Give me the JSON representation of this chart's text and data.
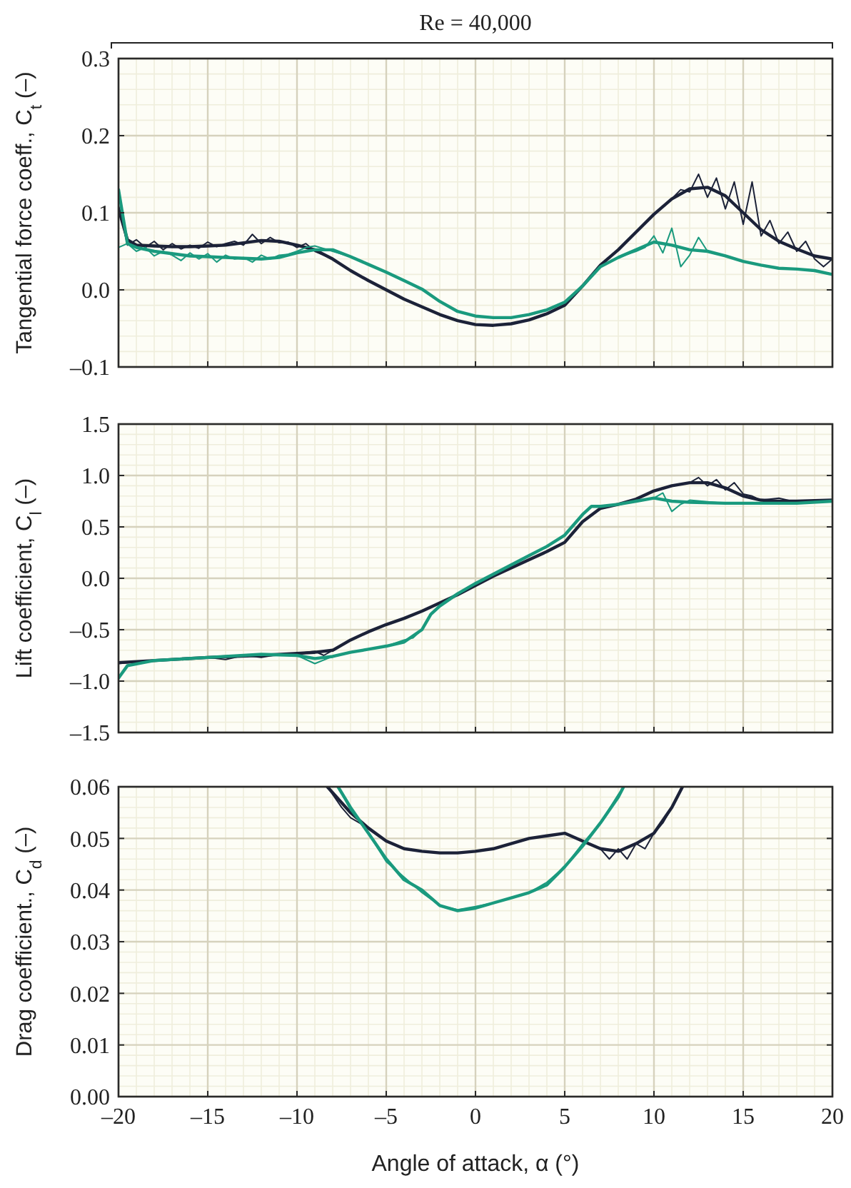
{
  "chart_data": [
    {
      "type": "line",
      "title": "Re = 40,000",
      "ylabel": "Tangential force coeff., C$_{t}$ (–)",
      "xlim": [
        -20,
        20
      ],
      "ylim": [
        -0.1,
        0.3
      ],
      "tick_labels": "y",
      "grid": true,
      "marker": "none",
      "line_style": "solid",
      "xticks": [
        {
          "value": -20,
          "label": null
        },
        {
          "value": -15,
          "label": null
        },
        {
          "value": -10,
          "label": null
        },
        {
          "value": -5,
          "label": null
        },
        {
          "value": 0,
          "label": null
        },
        {
          "value": 5,
          "label": null
        },
        {
          "value": 10,
          "label": null
        },
        {
          "value": 15,
          "label": null
        },
        {
          "value": 20,
          "label": null
        }
      ],
      "yticks": [
        {
          "value": -0.1,
          "label": "–0.1"
        },
        {
          "value": 0,
          "label": "0.0"
        },
        {
          "value": 0.1,
          "label": "0.1"
        },
        {
          "value": 0.2,
          "label": "0.2"
        },
        {
          "value": 0.3,
          "label": "0.3"
        }
      ],
      "series": [
        {
          "color": "#1c2238",
          "x": [
            -20,
            -19.5,
            -19,
            -18.5,
            -18,
            -17.5,
            -17,
            -16.5,
            -16,
            -15.5,
            -15,
            -14.5,
            -14,
            -13.5,
            -13,
            -12.5,
            -12,
            -11.5,
            -11,
            -10.5,
            -10,
            -9.5,
            -9,
            -8,
            -7,
            -6,
            -5,
            -4,
            -3,
            -2,
            -1,
            0,
            1,
            2,
            3,
            4,
            5,
            6,
            7,
            8,
            9,
            10,
            11,
            11.5,
            12,
            12.5,
            13,
            13.5,
            14,
            14.5,
            15,
            15.5,
            16,
            16.5,
            17,
            17.5,
            18,
            18.5,
            19,
            19.5,
            20
          ],
          "values": [
            0.11,
            0.058,
            0.065,
            0.055,
            0.063,
            0.052,
            0.06,
            0.053,
            0.058,
            0.054,
            0.062,
            0.056,
            0.06,
            0.063,
            0.058,
            0.072,
            0.06,
            0.068,
            0.061,
            0.062,
            0.055,
            0.06,
            0.05,
            0.04,
            0.025,
            0.012,
            0.0,
            -0.012,
            -0.022,
            -0.032,
            -0.04,
            -0.045,
            -0.046,
            -0.044,
            -0.039,
            -0.031,
            -0.02,
            0.005,
            0.032,
            0.052,
            0.075,
            0.098,
            0.118,
            0.13,
            0.127,
            0.15,
            0.12,
            0.145,
            0.105,
            0.14,
            0.085,
            0.14,
            0.07,
            0.09,
            0.06,
            0.075,
            0.05,
            0.063,
            0.04,
            0.03,
            0.04
          ]
        },
        {
          "color": "#1c2238",
          "x": [
            -20,
            -19.5,
            -19,
            -18,
            -17,
            -16,
            -15,
            -14,
            -13,
            -12,
            -11,
            -10,
            -9,
            -8,
            -7,
            -6,
            -5,
            -4,
            -3,
            -2,
            -1,
            0,
            1,
            2,
            3,
            4,
            5,
            6,
            7,
            8,
            9,
            10,
            11,
            12,
            13,
            14,
            15,
            16,
            17,
            18,
            19,
            20
          ],
          "values": [
            0.105,
            0.065,
            0.058,
            0.057,
            0.056,
            0.056,
            0.057,
            0.058,
            0.061,
            0.064,
            0.063,
            0.058,
            0.052,
            0.04,
            0.025,
            0.012,
            0.0,
            -0.012,
            -0.022,
            -0.032,
            -0.04,
            -0.045,
            -0.046,
            -0.044,
            -0.039,
            -0.031,
            -0.02,
            0.005,
            0.032,
            0.052,
            0.075,
            0.098,
            0.118,
            0.131,
            0.133,
            0.122,
            0.1,
            0.078,
            0.063,
            0.053,
            0.044,
            0.04
          ]
        },
        {
          "color": "#1a9a7e",
          "x": [
            -20,
            -19.5,
            -19,
            -18.5,
            -18,
            -17.5,
            -17,
            -16.5,
            -16,
            -15.5,
            -15,
            -14.5,
            -14,
            -13.5,
            -13,
            -12.5,
            -12,
            -11.5,
            -11,
            -10.5,
            -10,
            -9.5,
            -9,
            -8,
            -7,
            -6,
            -5,
            -4,
            -3,
            -2,
            -1,
            0,
            1,
            2,
            3,
            4,
            5,
            6,
            7,
            8,
            9,
            9.5,
            10,
            10.5,
            11,
            11.5,
            12,
            12.5,
            13,
            14,
            15,
            16,
            17,
            18,
            19,
            20
          ],
          "values": [
            0.055,
            0.06,
            0.05,
            0.055,
            0.044,
            0.05,
            0.045,
            0.038,
            0.048,
            0.04,
            0.047,
            0.036,
            0.045,
            0.04,
            0.042,
            0.036,
            0.045,
            0.04,
            0.045,
            0.046,
            0.05,
            0.055,
            0.057,
            0.05,
            0.043,
            0.033,
            0.023,
            0.012,
            0.001,
            -0.015,
            -0.028,
            -0.034,
            -0.036,
            -0.036,
            -0.032,
            -0.026,
            -0.016,
            0.005,
            0.03,
            0.042,
            0.05,
            0.055,
            0.07,
            0.048,
            0.08,
            0.03,
            0.045,
            0.068,
            0.05,
            0.044,
            0.037,
            0.032,
            0.028,
            0.027,
            0.025,
            0.02
          ]
        },
        {
          "color": "#1a9a7e",
          "x": [
            -20,
            -19.5,
            -19,
            -18,
            -17,
            -16,
            -15,
            -14,
            -13,
            -12,
            -11,
            -10,
            -9,
            -8,
            -7,
            -6,
            -5,
            -4,
            -3,
            -2,
            -1,
            0,
            1,
            2,
            3,
            4,
            5,
            6,
            7,
            8,
            9,
            10,
            11,
            12,
            13,
            14,
            15,
            16,
            17,
            18,
            19,
            20
          ],
          "values": [
            0.13,
            0.06,
            0.055,
            0.05,
            0.047,
            0.044,
            0.043,
            0.042,
            0.041,
            0.04,
            0.042,
            0.048,
            0.052,
            0.052,
            0.043,
            0.033,
            0.023,
            0.012,
            0.001,
            -0.015,
            -0.028,
            -0.034,
            -0.036,
            -0.036,
            -0.032,
            -0.026,
            -0.016,
            0.005,
            0.03,
            0.042,
            0.052,
            0.062,
            0.058,
            0.052,
            0.05,
            0.044,
            0.037,
            0.032,
            0.028,
            0.027,
            0.025,
            0.02
          ]
        }
      ]
    },
    {
      "type": "line",
      "ylabel": "Lift coefficient, C$_{l}$ (–)",
      "xlim": [
        -20,
        20
      ],
      "ylim": [
        -1.5,
        1.5
      ],
      "tick_labels": "y",
      "grid": true,
      "marker": "none",
      "line_style": "solid",
      "xticks": [
        {
          "value": -20,
          "label": null
        },
        {
          "value": -15,
          "label": null
        },
        {
          "value": -10,
          "label": null
        },
        {
          "value": -5,
          "label": null
        },
        {
          "value": 0,
          "label": null
        },
        {
          "value": 5,
          "label": null
        },
        {
          "value": 10,
          "label": null
        },
        {
          "value": 15,
          "label": null
        },
        {
          "value": 20,
          "label": null
        }
      ],
      "yticks": [
        {
          "value": -1.5,
          "label": "–1.5"
        },
        {
          "value": -1,
          "label": "–1.0"
        },
        {
          "value": -0.5,
          "label": "–0.5"
        },
        {
          "value": 0,
          "label": "0.0"
        },
        {
          "value": 0.5,
          "label": "0.5"
        },
        {
          "value": 1,
          "label": "1.0"
        },
        {
          "value": 1.5,
          "label": "1.5"
        }
      ],
      "series": [
        {
          "color": "#1c2238",
          "x": [
            -20,
            -18,
            -16,
            -15,
            -14,
            -13,
            -12,
            -11,
            -10,
            -9,
            -8.5,
            -8,
            -7,
            -6,
            -5,
            -4,
            -3,
            -2,
            -1,
            0,
            1,
            2,
            3,
            4,
            5,
            6,
            7,
            8,
            9,
            10,
            11,
            12,
            12.5,
            13,
            13.5,
            14,
            14.5,
            15,
            15.5,
            16,
            17,
            18,
            19,
            20
          ],
          "values": [
            -0.83,
            -0.8,
            -0.78,
            -0.77,
            -0.79,
            -0.75,
            -0.77,
            -0.74,
            -0.73,
            -0.71,
            -0.75,
            -0.7,
            -0.6,
            -0.52,
            -0.45,
            -0.39,
            -0.32,
            -0.24,
            -0.16,
            -0.07,
            0.02,
            0.1,
            0.18,
            0.26,
            0.35,
            0.55,
            0.68,
            0.72,
            0.77,
            0.85,
            0.9,
            0.93,
            0.98,
            0.9,
            0.96,
            0.86,
            0.93,
            0.82,
            0.8,
            0.76,
            0.78,
            0.74,
            0.76,
            0.76
          ]
        },
        {
          "color": "#1c2238",
          "x": [
            -20,
            -15,
            -12,
            -10,
            -9,
            -8,
            -7,
            -6,
            -5,
            -4,
            -3,
            -2,
            -1,
            0,
            1,
            2,
            3,
            4,
            5,
            6,
            7,
            8,
            9,
            10,
            11,
            12,
            13,
            14,
            15,
            16,
            17,
            18,
            20
          ],
          "values": [
            -0.82,
            -0.77,
            -0.75,
            -0.73,
            -0.72,
            -0.7,
            -0.6,
            -0.52,
            -0.45,
            -0.39,
            -0.32,
            -0.24,
            -0.16,
            -0.07,
            0.02,
            0.1,
            0.18,
            0.26,
            0.35,
            0.55,
            0.68,
            0.72,
            0.77,
            0.85,
            0.9,
            0.93,
            0.93,
            0.88,
            0.8,
            0.76,
            0.75,
            0.75,
            0.76
          ]
        },
        {
          "color": "#1a9a7e",
          "x": [
            -20,
            -19.5,
            -18,
            -15,
            -12,
            -10,
            -9,
            -8,
            -7,
            -6,
            -5,
            -4,
            -3.5,
            -3,
            -2.5,
            -2,
            -1,
            0,
            1,
            2,
            3,
            4,
            5,
            6,
            6.5,
            7,
            8,
            9,
            10,
            10.5,
            11,
            11.5,
            12,
            14,
            16,
            18,
            20
          ],
          "values": [
            -0.97,
            -0.85,
            -0.8,
            -0.77,
            -0.74,
            -0.75,
            -0.83,
            -0.76,
            -0.72,
            -0.69,
            -0.66,
            -0.6,
            -0.58,
            -0.5,
            -0.35,
            -0.27,
            -0.15,
            -0.05,
            0.04,
            0.13,
            0.22,
            0.31,
            0.42,
            0.62,
            0.7,
            0.7,
            0.72,
            0.75,
            0.78,
            0.83,
            0.65,
            0.72,
            0.76,
            0.73,
            0.73,
            0.73,
            0.75
          ]
        },
        {
          "color": "#1a9a7e",
          "x": [
            -20,
            -19.5,
            -18,
            -15,
            -12,
            -10,
            -9,
            -8,
            -7,
            -6,
            -5,
            -4,
            -3,
            -2.5,
            -2,
            -1,
            0,
            1,
            2,
            3,
            4,
            5,
            6,
            6.5,
            7,
            8,
            9,
            10,
            11,
            12,
            14,
            16,
            18,
            20
          ],
          "values": [
            -0.97,
            -0.85,
            -0.8,
            -0.77,
            -0.74,
            -0.75,
            -0.78,
            -0.76,
            -0.72,
            -0.69,
            -0.66,
            -0.62,
            -0.5,
            -0.35,
            -0.27,
            -0.15,
            -0.05,
            0.04,
            0.13,
            0.22,
            0.31,
            0.42,
            0.62,
            0.7,
            0.7,
            0.72,
            0.75,
            0.78,
            0.75,
            0.74,
            0.73,
            0.73,
            0.73,
            0.75
          ]
        }
      ]
    },
    {
      "type": "line",
      "xlabel": "Angle of attack, α (°)",
      "ylabel": "Drag coefficient., C$_{d}$ (–)",
      "xlim": [
        -20,
        20
      ],
      "ylim": [
        0,
        0.06
      ],
      "grid": true,
      "marker": "none",
      "line_style": "solid",
      "xticks": [
        {
          "value": -20,
          "label": "–20"
        },
        {
          "value": -15,
          "label": "–15"
        },
        {
          "value": -10,
          "label": "–10"
        },
        {
          "value": -5,
          "label": "–5"
        },
        {
          "value": 0,
          "label": "0"
        },
        {
          "value": 5,
          "label": "5"
        },
        {
          "value": 10,
          "label": "10"
        },
        {
          "value": 15,
          "label": "15"
        },
        {
          "value": 20,
          "label": "20"
        }
      ],
      "yticks": [
        {
          "value": 0,
          "label": "0.00"
        },
        {
          "value": 0.01,
          "label": "0.01"
        },
        {
          "value": 0.02,
          "label": "0.02"
        },
        {
          "value": 0.03,
          "label": "0.03"
        },
        {
          "value": 0.04,
          "label": "0.04"
        },
        {
          "value": 0.05,
          "label": "0.05"
        },
        {
          "value": 0.06,
          "label": "0.06"
        }
      ],
      "series": [
        {
          "color": "#1c2238",
          "x": [
            -8.3,
            -7.5,
            -7,
            -6.5,
            -6,
            -5,
            -4,
            -3,
            -2,
            -1,
            0,
            1,
            2,
            3,
            4,
            5,
            6,
            7,
            7.5,
            8,
            8.5,
            9,
            9.5,
            10,
            10.5,
            11,
            11.6
          ],
          "values": [
            0.06,
            0.056,
            0.054,
            0.053,
            0.052,
            0.0495,
            0.048,
            0.0475,
            0.0472,
            0.0472,
            0.0475,
            0.048,
            0.049,
            0.05,
            0.0505,
            0.051,
            0.0495,
            0.048,
            0.046,
            0.048,
            0.046,
            0.049,
            0.048,
            0.051,
            0.053,
            0.056,
            0.06
          ]
        },
        {
          "color": "#1c2238",
          "x": [
            -8.3,
            -7,
            -6,
            -5,
            -4,
            -3,
            -2,
            -1,
            0,
            1,
            2,
            3,
            4,
            5,
            6,
            7,
            8,
            9,
            10,
            11,
            11.6
          ],
          "values": [
            0.06,
            0.055,
            0.052,
            0.0495,
            0.048,
            0.0475,
            0.0472,
            0.0472,
            0.0475,
            0.048,
            0.049,
            0.05,
            0.0505,
            0.051,
            0.0495,
            0.048,
            0.0475,
            0.049,
            0.051,
            0.056,
            0.06
          ]
        },
        {
          "color": "#1a9a7e",
          "x": [
            -7.7,
            -7,
            -6,
            -5,
            -4,
            -3,
            -2,
            -1,
            0,
            1,
            2,
            3,
            4,
            5,
            6,
            7,
            8,
            8.3
          ],
          "values": [
            0.06,
            0.0555,
            0.051,
            0.0455,
            0.0425,
            0.0395,
            0.037,
            0.0362,
            0.0368,
            0.0375,
            0.0385,
            0.0395,
            0.0415,
            0.0445,
            0.049,
            0.053,
            0.0585,
            0.06
          ]
        },
        {
          "color": "#1a9a7e",
          "x": [
            -7.7,
            -7,
            -6,
            -5,
            -4,
            -3,
            -2,
            -1,
            0,
            1,
            2,
            3,
            4,
            5,
            6,
            7,
            8,
            8.3
          ],
          "values": [
            0.06,
            0.056,
            0.051,
            0.046,
            0.042,
            0.04,
            0.037,
            0.036,
            0.0365,
            0.0375,
            0.0385,
            0.0395,
            0.041,
            0.0445,
            0.0485,
            0.053,
            0.058,
            0.06
          ]
        }
      ]
    }
  ]
}
